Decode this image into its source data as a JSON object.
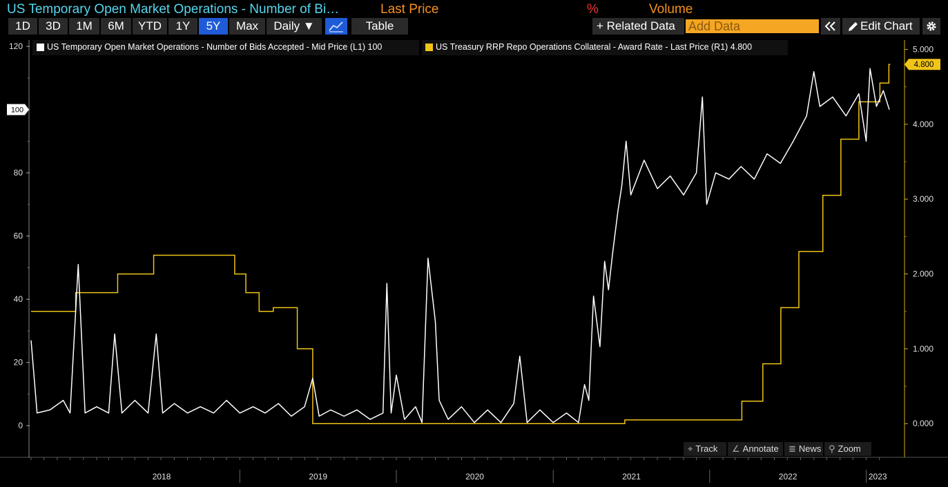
{
  "header": {
    "title": "US Temporary Open Market Operations - Number of Bi…",
    "last_price": "Last Price",
    "percent": "%",
    "volume": "Volume"
  },
  "toolbar": {
    "ranges": [
      "1D",
      "3D",
      "1M",
      "6M",
      "YTD",
      "1Y",
      "5Y",
      "Max"
    ],
    "active_range": "5Y",
    "frequency": "Daily ▼",
    "table_label": "Table",
    "related_label": "+ Related Data",
    "add_data_placeholder": "Add Data",
    "edit_chart_label": "Edit Chart",
    "icons": [
      "line-chart-icon",
      "double-chevron-left-icon",
      "pencil-icon",
      "gear-icon"
    ]
  },
  "legend": {
    "left_text": "US Temporary Open Market Operations - Number of Bids Accepted - Mid Price (L1) 100",
    "right_text": "US Treasury RRP Repo Operations Collateral - Award Rate - Last Price (R1) 4.800"
  },
  "tools": [
    "Track",
    "Annotate",
    "News",
    "Zoom"
  ],
  "colors": {
    "background": "#000000",
    "series_left": "#ffffff",
    "series_right": "#f0c419",
    "title": "#55d7ee",
    "accent_orange": "#f5901e",
    "active_tab": "#1f5bd6"
  },
  "chart_data": {
    "type": "line",
    "x_range": [
      "2017-09-01",
      "2023-02-24"
    ],
    "x_labels": [
      "2018",
      "2019",
      "2020",
      "2021",
      "2022",
      "2023"
    ],
    "left_axis": {
      "ticks": [
        0,
        20,
        40,
        60,
        80,
        100,
        120
      ],
      "range": [
        -10,
        122
      ]
    },
    "right_axis": {
      "ticks": [
        "0.000",
        "1.000",
        "2.000",
        "3.000",
        "4.000",
        "5.000"
      ],
      "range": [
        -0.45,
        5.125
      ]
    },
    "last_value_labels": {
      "left": "100",
      "right": "4.800"
    },
    "grid": false,
    "legend_placement": "top-left",
    "series": [
      {
        "name": "US Temporary Open Market Operations - Number of Bids Accepted - Mid Price (L1) 100",
        "axis": "left",
        "points": [
          [
            "2017-09-01",
            27
          ],
          [
            "2017-09-15",
            4
          ],
          [
            "2017-10-15",
            5
          ],
          [
            "2017-11-15",
            8
          ],
          [
            "2017-12-01",
            4
          ],
          [
            "2017-12-20",
            51
          ],
          [
            "2018-01-05",
            4
          ],
          [
            "2018-02-01",
            6
          ],
          [
            "2018-03-01",
            4
          ],
          [
            "2018-03-15",
            29
          ],
          [
            "2018-04-01",
            4
          ],
          [
            "2018-05-01",
            8
          ],
          [
            "2018-06-01",
            4
          ],
          [
            "2018-06-20",
            29
          ],
          [
            "2018-07-05",
            4
          ],
          [
            "2018-08-01",
            7
          ],
          [
            "2018-09-01",
            4
          ],
          [
            "2018-10-01",
            6
          ],
          [
            "2018-11-01",
            4
          ],
          [
            "2018-12-01",
            8
          ],
          [
            "2019-01-01",
            4
          ],
          [
            "2019-02-01",
            6
          ],
          [
            "2019-03-01",
            4
          ],
          [
            "2019-04-01",
            7
          ],
          [
            "2019-05-01",
            3
          ],
          [
            "2019-06-01",
            6
          ],
          [
            "2019-06-20",
            15
          ],
          [
            "2019-07-05",
            3
          ],
          [
            "2019-08-01",
            5
          ],
          [
            "2019-09-01",
            3
          ],
          [
            "2019-10-01",
            5
          ],
          [
            "2019-11-01",
            2
          ],
          [
            "2019-12-01",
            4
          ],
          [
            "2019-12-10",
            45
          ],
          [
            "2019-12-20",
            4
          ],
          [
            "2020-01-01",
            16
          ],
          [
            "2020-01-20",
            2
          ],
          [
            "2020-02-15",
            6
          ],
          [
            "2020-03-01",
            1
          ],
          [
            "2020-03-15",
            53
          ],
          [
            "2020-04-01",
            33
          ],
          [
            "2020-04-10",
            8
          ],
          [
            "2020-05-01",
            2
          ],
          [
            "2020-06-01",
            6
          ],
          [
            "2020-07-01",
            1
          ],
          [
            "2020-08-01",
            5
          ],
          [
            "2020-09-01",
            1
          ],
          [
            "2020-10-01",
            7
          ],
          [
            "2020-10-15",
            22
          ],
          [
            "2020-11-01",
            1
          ],
          [
            "2020-12-01",
            5
          ],
          [
            "2021-01-01",
            1
          ],
          [
            "2021-02-01",
            4
          ],
          [
            "2021-03-01",
            1
          ],
          [
            "2021-03-15",
            13
          ],
          [
            "2021-03-25",
            8
          ],
          [
            "2021-04-05",
            41
          ],
          [
            "2021-04-20",
            25
          ],
          [
            "2021-05-01",
            52
          ],
          [
            "2021-05-10",
            43
          ],
          [
            "2021-05-20",
            55
          ],
          [
            "2021-06-01",
            68
          ],
          [
            "2021-06-10",
            76
          ],
          [
            "2021-06-20",
            90
          ],
          [
            "2021-07-01",
            73
          ],
          [
            "2021-08-01",
            84
          ],
          [
            "2021-09-01",
            75
          ],
          [
            "2021-10-01",
            79
          ],
          [
            "2021-11-01",
            73
          ],
          [
            "2021-12-01",
            80
          ],
          [
            "2021-12-15",
            104
          ],
          [
            "2021-12-25",
            70
          ],
          [
            "2022-01-15",
            80
          ],
          [
            "2022-02-15",
            78
          ],
          [
            "2022-03-15",
            82
          ],
          [
            "2022-04-15",
            78
          ],
          [
            "2022-05-15",
            86
          ],
          [
            "2022-06-15",
            83
          ],
          [
            "2022-07-15",
            90
          ],
          [
            "2022-08-15",
            98
          ],
          [
            "2022-09-01",
            112
          ],
          [
            "2022-09-15",
            101
          ],
          [
            "2022-10-15",
            104
          ],
          [
            "2022-11-15",
            98
          ],
          [
            "2022-12-15",
            105
          ],
          [
            "2023-01-01",
            90
          ],
          [
            "2023-01-10",
            113
          ],
          [
            "2023-01-25",
            101
          ],
          [
            "2023-02-10",
            106
          ],
          [
            "2023-02-24",
            100
          ]
        ]
      },
      {
        "name": "US Treasury RRP Repo Operations Collateral - Award Rate - Last Price (R1) 4.800",
        "axis": "right",
        "points": [
          [
            "2017-09-01",
            1.5
          ],
          [
            "2017-12-14",
            1.75
          ],
          [
            "2018-03-22",
            2.0
          ],
          [
            "2018-06-14",
            2.25
          ],
          [
            "2018-12-20",
            2.0
          ],
          [
            "2019-01-15",
            1.75
          ],
          [
            "2019-02-15",
            1.5
          ],
          [
            "2019-03-20",
            1.55
          ],
          [
            "2019-05-15",
            1.0
          ],
          [
            "2019-06-20",
            0.0
          ],
          [
            "2021-06-17",
            0.05
          ],
          [
            "2022-03-17",
            0.3
          ],
          [
            "2022-05-05",
            0.8
          ],
          [
            "2022-06-16",
            1.55
          ],
          [
            "2022-07-28",
            2.3
          ],
          [
            "2022-09-22",
            3.05
          ],
          [
            "2022-11-03",
            3.8
          ],
          [
            "2022-12-15",
            4.3
          ],
          [
            "2023-02-02",
            4.55
          ],
          [
            "2023-02-23",
            4.8
          ]
        ]
      }
    ]
  }
}
